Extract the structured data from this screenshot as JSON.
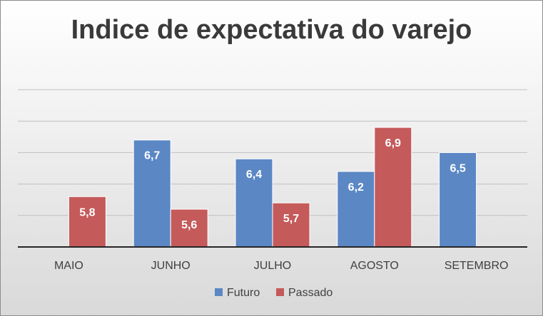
{
  "chart_data": {
    "type": "bar",
    "title": "Indice de expectativa do varejo",
    "categories": [
      "MAIO",
      "JUNHO",
      "JULHO",
      "AGOSTO",
      "SETEMBRO"
    ],
    "series": [
      {
        "name": "Futuro",
        "color": "#5b87c5",
        "values": [
          null,
          6.7,
          6.4,
          6.2,
          6.5
        ]
      },
      {
        "name": "Passado",
        "color": "#c55a5a",
        "values": [
          5.8,
          5.6,
          5.7,
          6.9,
          null
        ]
      }
    ],
    "data_labels": {
      "Futuro": [
        "",
        "6,7",
        "6,4",
        "6,2",
        "6,5"
      ],
      "Passado": [
        "5,8",
        "5,6",
        "5,7",
        "6,9",
        ""
      ]
    },
    "ylim": [
      5.0,
      7.5
    ],
    "y_gridlines": [
      5.5,
      6.0,
      6.5,
      7.0,
      7.5
    ],
    "grid": true,
    "legend_position": "bottom",
    "xlabel": "",
    "ylabel": ""
  }
}
